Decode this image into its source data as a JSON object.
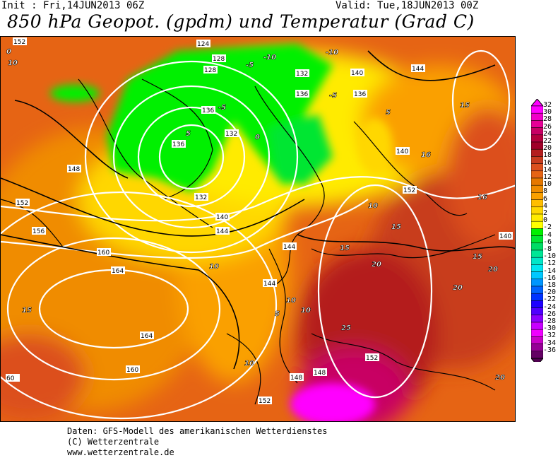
{
  "header": {
    "init": "Init : Fri,14JUN2013 06Z",
    "valid": "Valid: Tue,18JUN2013 00Z",
    "title": "850 hPa Geopot. (gpdm) und Temperatur (Grad C)"
  },
  "colorbar": {
    "labels": [
      "32",
      "30",
      "28",
      "26",
      "24",
      "22",
      "20",
      "18",
      "16",
      "14",
      "12",
      "10",
      "8",
      "6",
      "4",
      "2",
      "0",
      "-2",
      "-4",
      "-6",
      "-8",
      "-10",
      "-12",
      "-14",
      "-16",
      "-18",
      "-20",
      "-22",
      "-24",
      "-26",
      "-28",
      "-30",
      "-32",
      "-34",
      "-36"
    ],
    "colors": [
      "#ff00ff",
      "#f000c8",
      "#e60096",
      "#c80064",
      "#b4003c",
      "#a00028",
      "#b41e1e",
      "#c83c1e",
      "#dc501e",
      "#e66414",
      "#e67800",
      "#f08c00",
      "#faa000",
      "#ffbe00",
      "#ffd700",
      "#ffeb00",
      "#ffff00",
      "#00f000",
      "#00e632",
      "#00dc64",
      "#00e696",
      "#00e6c8",
      "#00e6f0",
      "#00c8ff",
      "#0096ff",
      "#0064ff",
      "#0032ff",
      "#1e00ff",
      "#5000ff",
      "#8c00ff",
      "#c800ff",
      "#f000ff",
      "#c800c8",
      "#960096",
      "#640064"
    ]
  },
  "geopotential_labels": [
    "152",
    "124",
    "128",
    "128",
    "132",
    "136",
    "136",
    "132",
    "136",
    "140",
    "144",
    "148",
    "144",
    "152",
    "156",
    "160",
    "164",
    "164",
    "160",
    "152",
    "140",
    "144",
    "148",
    "148",
    "152",
    "152",
    "144",
    "136",
    "132",
    "140",
    "140",
    "60"
  ],
  "temperature_labels": [
    "0",
    "10",
    "-10",
    "-10",
    "-5",
    "-5",
    "0",
    "5",
    "10",
    "15",
    "16",
    "15",
    "5",
    "10",
    "15",
    "20",
    "20",
    "25",
    "20",
    "15",
    "16",
    "10",
    "10",
    "10",
    "5",
    "-5",
    "15",
    "20"
  ],
  "footer": {
    "line1": "Daten: GFS-Modell des amerikanischen Wetterdienstes",
    "line2": "(C) Wetterzentrale",
    "line3": "www.wetterzentrale.de"
  }
}
